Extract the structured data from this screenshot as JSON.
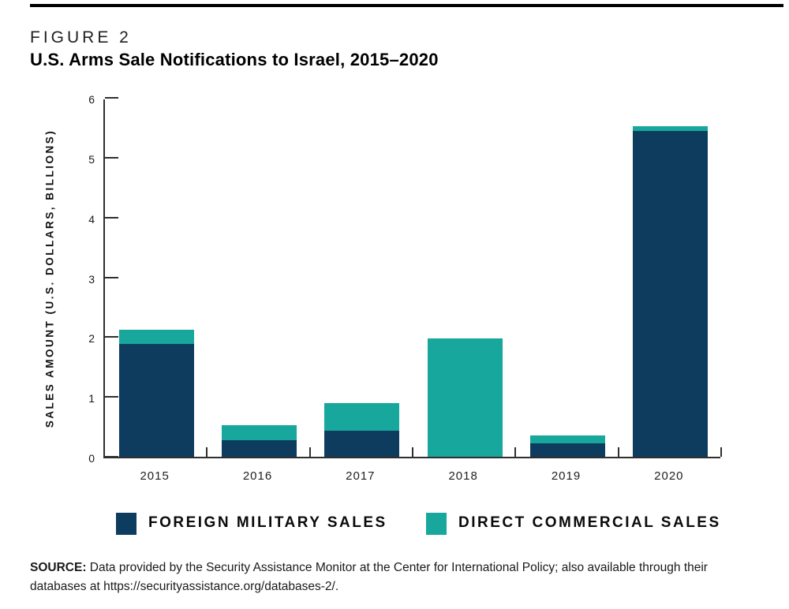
{
  "figure": {
    "label": "FIGURE 2",
    "title": "U.S. Arms Sale Notifications to Israel, 2015–2020"
  },
  "chart_data": {
    "type": "bar",
    "stacked": true,
    "title": "U.S. Arms Sale Notifications to Israel, 2015–2020",
    "categories": [
      "2015",
      "2016",
      "2017",
      "2018",
      "2019",
      "2020"
    ],
    "series": [
      {
        "name": "FOREIGN MILITARY SALES",
        "color": "#0e3c5f",
        "values": [
          1.89,
          0.28,
          0.44,
          0.0,
          0.23,
          5.44
        ]
      },
      {
        "name": "DIRECT COMMERCIAL SALES",
        "color": "#17a79c",
        "values": [
          0.24,
          0.25,
          0.46,
          1.98,
          0.12,
          0.09
        ]
      }
    ],
    "totals": [
      2.13,
      0.53,
      0.9,
      1.98,
      0.35,
      5.53
    ],
    "xlabel": "",
    "ylabel": "SALES AMOUNT (U.S. DOLLARS, BILLIONS)",
    "ylim": [
      0,
      6
    ],
    "yticks": [
      0,
      1,
      2,
      3,
      4,
      5,
      6
    ],
    "grid": false,
    "legend_position": "bottom",
    "axis_color": "#2f2f2f",
    "tick_style": "inward"
  },
  "source": {
    "label": "SOURCE:",
    "text": "Data provided by the Security Assistance Monitor at the Center for International Policy; also available through their databases at https://securityassistance.org/databases-2/."
  }
}
